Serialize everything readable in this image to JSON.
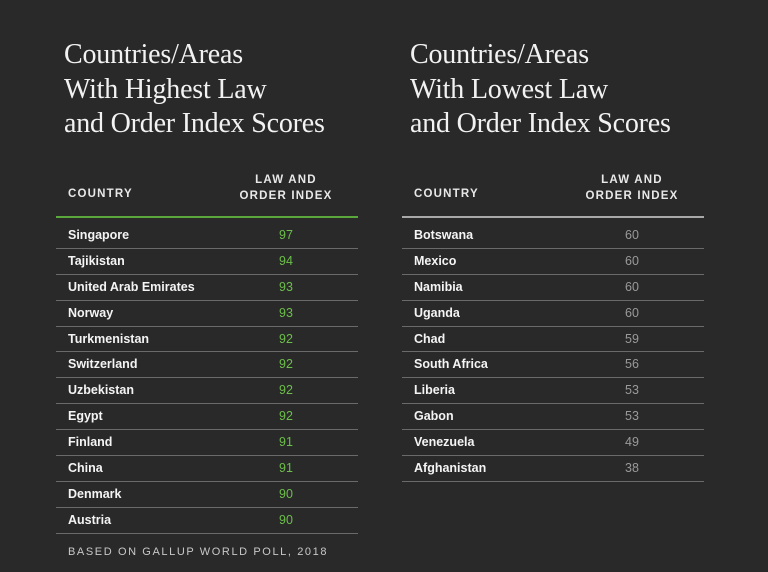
{
  "chart_data": [
    {
      "type": "table",
      "title": "Countries/Areas\nWith Highest Law\nand Order Index Scores",
      "columns": [
        "COUNTRY",
        "LAW AND\nORDER INDEX"
      ],
      "rows": [
        {
          "country": "Singapore",
          "index": 97
        },
        {
          "country": "Tajikistan",
          "index": 94
        },
        {
          "country": "United Arab Emirates",
          "index": 93
        },
        {
          "country": "Norway",
          "index": 93
        },
        {
          "country": "Turkmenistan",
          "index": 92
        },
        {
          "country": "Switzerland",
          "index": 92
        },
        {
          "country": "Uzbekistan",
          "index": 92
        },
        {
          "country": "Egypt",
          "index": 92
        },
        {
          "country": "Finland",
          "index": 91
        },
        {
          "country": "China",
          "index": 91
        },
        {
          "country": "Denmark",
          "index": 90
        },
        {
          "country": "Austria",
          "index": 90
        }
      ],
      "accent_color": "#5aa83c",
      "value_color": "#6cbf4a"
    },
    {
      "type": "table",
      "title": "Countries/Areas\nWith Lowest Law\nand Order Index Scores",
      "columns": [
        "COUNTRY",
        "LAW AND\nORDER INDEX"
      ],
      "rows": [
        {
          "country": "Botswana",
          "index": 60
        },
        {
          "country": "Mexico",
          "index": 60
        },
        {
          "country": "Namibia",
          "index": 60
        },
        {
          "country": "Uganda",
          "index": 60
        },
        {
          "country": "Chad",
          "index": 59
        },
        {
          "country": "South Africa",
          "index": 56
        },
        {
          "country": "Liberia",
          "index": 53
        },
        {
          "country": "Gabon",
          "index": 53
        },
        {
          "country": "Venezuela",
          "index": 49
        },
        {
          "country": "Afghanistan",
          "index": 38
        }
      ],
      "accent_color": "#a8a8a8",
      "value_color": "#9a9a9a"
    }
  ],
  "footnote": "BASED ON GALLUP WORLD POLL, 2018"
}
